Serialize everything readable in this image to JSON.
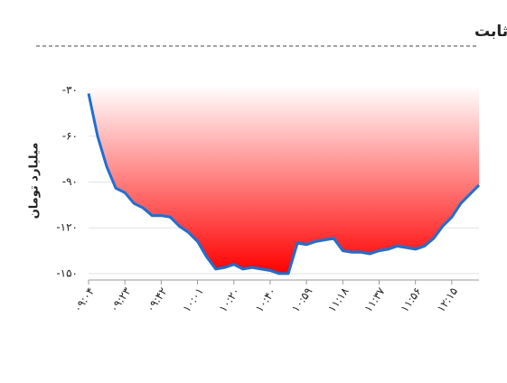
{
  "chart_data": {
    "type": "area",
    "title": "ورود پول حقیقی به صندوق درآمد ثابت",
    "y_label": "میلیارد تومان",
    "categories": [
      "۰۹:۰۴",
      null,
      null,
      null,
      "۰۹:۲۳",
      null,
      null,
      null,
      "۰۹:۴۲",
      null,
      null,
      null,
      "۱۰:۰۱",
      null,
      null,
      null,
      "۱۰:۲۰",
      null,
      null,
      null,
      "۱۰:۴۰",
      null,
      null,
      null,
      "۱۰:۵۹",
      null,
      null,
      null,
      "۱۱:۱۸",
      null,
      null,
      null,
      "۱۱:۳۷",
      null,
      null,
      null,
      "۱۱:۵۶",
      null,
      null,
      null,
      "۱۲:۱۵",
      null,
      null,
      null
    ],
    "values": [
      -32,
      -60,
      -80,
      -94,
      -97,
      -104,
      -107,
      -112,
      -112,
      -113,
      -119,
      -123,
      -129,
      -139,
      -147,
      -146,
      -144,
      -147,
      -146,
      -147,
      -148,
      -150,
      -150,
      -130,
      -131,
      -129,
      -128,
      -127,
      -135,
      -136,
      -136,
      -137,
      -135,
      -134,
      -132,
      -133,
      -134,
      -132,
      -127,
      -119,
      -113,
      -104,
      -98,
      -92
    ],
    "color": "#1f6fd1",
    "fill_color": "#ff0000",
    "ylim": [
      -153,
      -27
    ],
    "yticks": [
      {
        "value": -30,
        "label": "-۳۰"
      },
      {
        "value": -60,
        "label": "-۶۰"
      },
      {
        "value": -90,
        "label": "-۹۰"
      },
      {
        "value": -120,
        "label": "-۱۲۰"
      },
      {
        "value": -150,
        "label": "-۱۵۰"
      }
    ],
    "grid": true
  }
}
